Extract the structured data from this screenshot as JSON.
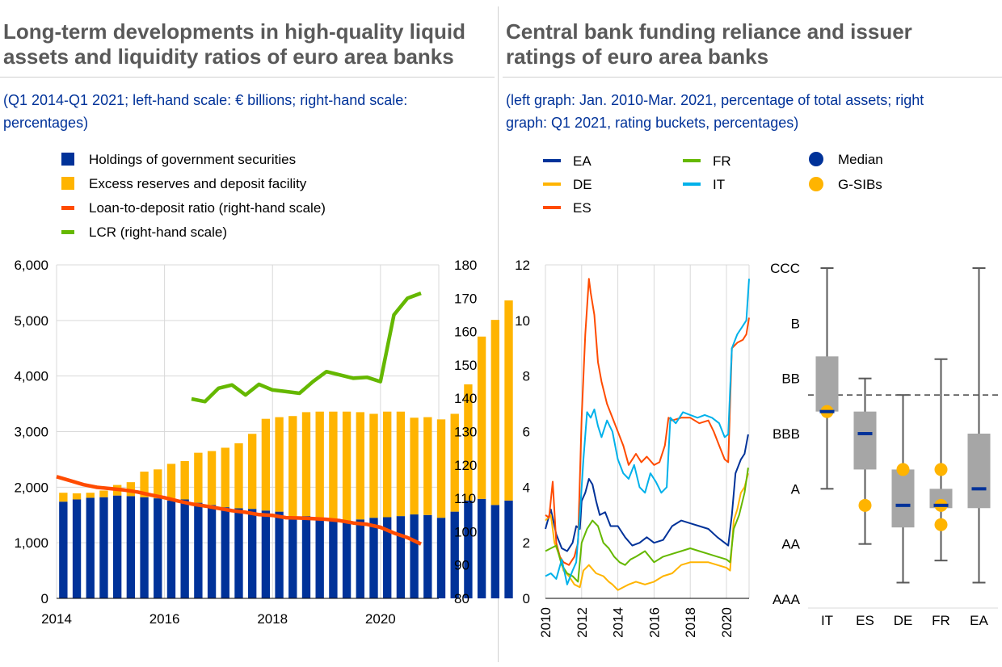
{
  "left_panel": {
    "title_line1": "Long-term developments in high-quality liquid",
    "title_line2": "assets and liquidity ratios of euro area banks",
    "subtitle_line1": "(Q1 2014-Q1 2021; left-hand scale: € billions; right-hand scale:",
    "subtitle_line2": "percentages)"
  },
  "right_panel": {
    "title_line1": "Central bank funding reliance and issuer",
    "title_line2": "ratings of euro area banks",
    "subtitle_line1": "(left graph: Jan. 2010-Mar. 2021, percentage of total assets; right",
    "subtitle_line2": "graph: Q1 2021, rating buckets, percentages)"
  },
  "colors": {
    "gov": "#003299",
    "excess": "#ffb400",
    "ltd": "#ff4b00",
    "lcr": "#65b800",
    "EA": "#003299",
    "DE": "#ffb400",
    "ES": "#ff4b00",
    "FR": "#65b800",
    "IT": "#00b1ea",
    "box": "#a6a6a6",
    "whisker": "#595959"
  },
  "chart_data": [
    {
      "type": "bar",
      "stacked": true,
      "legend": [
        {
          "label": "Holdings of government  securities",
          "kind": "square",
          "color_key": "gov"
        },
        {
          "label": "Excess reserves and deposit facility",
          "kind": "square",
          "color_key": "excess"
        },
        {
          "label": "Loan-to-deposit  ratio (right-hand scale)",
          "kind": "line",
          "color_key": "ltd"
        },
        {
          "label": "LCR (right-hand scale)",
          "kind": "line",
          "color_key": "lcr"
        }
      ],
      "x_start": 2014.0,
      "x_step": 0.25,
      "xlim": [
        2014,
        2021.08
      ],
      "x_ticks": [
        2014,
        2016,
        2018,
        2020
      ],
      "y_left_lim": [
        0,
        6000
      ],
      "y_left_ticks": [
        0,
        1000,
        2000,
        3000,
        4000,
        5000,
        6000
      ],
      "y_left_tick_labels": [
        "0",
        "1,000",
        "2,000",
        "3,000",
        "4,000",
        "5,000",
        "6,000"
      ],
      "y_right_lim": [
        80,
        180
      ],
      "y_right_ticks": [
        80,
        90,
        100,
        110,
        120,
        130,
        140,
        150,
        160,
        170,
        180
      ],
      "series": [
        {
          "name": "Holdings of government  securities",
          "values": [
            1740,
            1780,
            1810,
            1820,
            1850,
            1840,
            1820,
            1800,
            1760,
            1780,
            1720,
            1680,
            1640,
            1620,
            1610,
            1580,
            1560,
            1450,
            1480,
            1430,
            1420,
            1400,
            1420,
            1450,
            1460,
            1480,
            1510,
            1500,
            1450,
            1560,
            1760,
            1790,
            1680,
            1760
          ]
        },
        {
          "name": "Excess reserves and deposit facility",
          "values": [
            160,
            110,
            90,
            120,
            190,
            250,
            460,
            520,
            660,
            690,
            900,
            970,
            1070,
            1170,
            1350,
            1650,
            1700,
            1830,
            1870,
            1930,
            1940,
            1960,
            1930,
            1870,
            1900,
            1880,
            1740,
            1760,
            1770,
            1760,
            2090,
            2920,
            3330,
            3600
          ]
        },
        {
          "name": "Loan-to-deposit  ratio (right-hand scale)",
          "x": [
            2014,
            2014.25,
            2014.5,
            2014.75,
            2015,
            2015.25,
            2015.5,
            2015.75,
            2016,
            2016.25,
            2016.5,
            2016.75,
            2017,
            2017.25,
            2017.5,
            2017.75,
            2018,
            2018.25,
            2018.5,
            2018.75,
            2019,
            2019.25,
            2019.5,
            2019.75,
            2020,
            2020.25,
            2020.5,
            2020.75
          ],
          "values": [
            116.5,
            115.3,
            114.1,
            113.3,
            112.9,
            112.5,
            111.9,
            111.0,
            110.2,
            109.2,
            108.3,
            107.7,
            107.0,
            106.3,
            105.8,
            105.1,
            104.9,
            104.2,
            104.1,
            103.9,
            103.7,
            103.3,
            102.6,
            102.2,
            101.3,
            99.6,
            98.2,
            96.3
          ]
        },
        {
          "name": "LCR (right-hand scale)",
          "x": [
            2016.5,
            2016.75,
            2017,
            2017.25,
            2017.5,
            2017.75,
            2018,
            2018.25,
            2018.5,
            2018.75,
            2019,
            2019.25,
            2019.5,
            2019.75,
            2020,
            2020.25,
            2020.5,
            2020.75
          ],
          "values": [
            139.8,
            139.0,
            143.0,
            144.0,
            141.0,
            144.2,
            142.5,
            142.0,
            141.5,
            145.0,
            148.0,
            147.0,
            146.0,
            146.3,
            145.0,
            165.0,
            170.0,
            171.5
          ]
        }
      ]
    },
    {
      "type": "line",
      "legend": [
        {
          "label": "EA",
          "color_key": "EA"
        },
        {
          "label": "DE",
          "color_key": "DE"
        },
        {
          "label": "ES",
          "color_key": "ES"
        },
        {
          "label": "FR",
          "color_key": "FR"
        },
        {
          "label": "IT",
          "color_key": "IT"
        }
      ],
      "xlim": [
        2010,
        2021.25
      ],
      "x_ticks": [
        2010,
        2012,
        2014,
        2016,
        2018,
        2020
      ],
      "ylim": [
        0,
        12
      ],
      "y_ticks": [
        0,
        2,
        4,
        6,
        8,
        10,
        12
      ],
      "series": [
        {
          "name": "EA",
          "x": [
            2010,
            2010.3,
            2010.6,
            2010.9,
            2011.2,
            2011.5,
            2011.7,
            2011.9,
            2012.0,
            2012.2,
            2012.4,
            2012.6,
            2012.8,
            2013.0,
            2013.3,
            2013.6,
            2014.0,
            2014.4,
            2014.8,
            2015.2,
            2015.6,
            2016.0,
            2016.5,
            2017.0,
            2017.5,
            2018.0,
            2018.5,
            2019.0,
            2019.5,
            2019.9,
            2020.1,
            2020.3,
            2020.5,
            2020.8,
            2021.0,
            2021.2
          ],
          "values": [
            2.5,
            3.2,
            2.3,
            1.8,
            1.7,
            2.0,
            2.6,
            2.5,
            3.5,
            3.8,
            4.3,
            4.1,
            3.5,
            3.0,
            3.1,
            2.6,
            2.6,
            2.2,
            1.9,
            2.0,
            2.2,
            2.0,
            2.1,
            2.6,
            2.8,
            2.7,
            2.6,
            2.5,
            2.2,
            2.0,
            1.9,
            3.0,
            4.5,
            5.0,
            5.2,
            5.9
          ]
        },
        {
          "name": "DE",
          "x": [
            2010,
            2010.3,
            2010.5,
            2010.8,
            2011.0,
            2011.3,
            2011.6,
            2011.9,
            2012.1,
            2012.4,
            2012.8,
            2013.2,
            2013.5,
            2013.7,
            2014.0,
            2014.3,
            2014.6,
            2015.0,
            2015.5,
            2016.0,
            2016.5,
            2017.0,
            2017.5,
            2018.0,
            2018.5,
            2019.0,
            2019.5,
            2020.0,
            2020.2,
            2020.4,
            2020.6,
            2020.8,
            2021.0,
            2021.2
          ],
          "values": [
            2.8,
            3.0,
            2.0,
            1.5,
            1.0,
            0.8,
            0.5,
            0.4,
            1.0,
            1.2,
            0.9,
            0.8,
            0.6,
            0.5,
            0.3,
            0.4,
            0.5,
            0.6,
            0.5,
            0.6,
            0.8,
            0.9,
            1.2,
            1.3,
            1.3,
            1.3,
            1.2,
            1.1,
            1.0,
            2.8,
            3.2,
            3.8,
            4.0,
            4.5
          ]
        },
        {
          "name": "ES",
          "x": [
            2010,
            2010.2,
            2010.4,
            2010.6,
            2010.8,
            2011.0,
            2011.3,
            2011.6,
            2011.8,
            2012.0,
            2012.2,
            2012.4,
            2012.5,
            2012.7,
            2012.9,
            2013.1,
            2013.4,
            2013.7,
            2014.0,
            2014.3,
            2014.6,
            2014.8,
            2015.0,
            2015.3,
            2015.6,
            2016.0,
            2016.3,
            2016.6,
            2016.8,
            2017.0,
            2017.5,
            2018.0,
            2018.5,
            2019.0,
            2019.3,
            2019.6,
            2019.9,
            2020.1,
            2020.3,
            2020.6,
            2020.9,
            2021.1,
            2021.25
          ],
          "values": [
            3.0,
            2.9,
            4.2,
            2.0,
            1.5,
            1.3,
            1.2,
            1.5,
            2.0,
            6.5,
            9.5,
            11.5,
            11.0,
            10.2,
            8.5,
            7.8,
            7.0,
            6.5,
            6.0,
            5.5,
            4.8,
            5.0,
            5.2,
            4.9,
            5.1,
            4.8,
            4.9,
            5.5,
            6.5,
            6.4,
            6.5,
            6.5,
            6.3,
            6.4,
            6.0,
            5.5,
            5.0,
            4.9,
            9.0,
            9.2,
            9.3,
            9.5,
            10.1
          ]
        },
        {
          "name": "FR",
          "x": [
            2010,
            2010.3,
            2010.6,
            2010.9,
            2011.2,
            2011.5,
            2011.8,
            2012.0,
            2012.3,
            2012.6,
            2012.9,
            2013.2,
            2013.5,
            2013.8,
            2014.1,
            2014.4,
            2014.7,
            2015.0,
            2015.5,
            2016.0,
            2016.5,
            2017.0,
            2017.5,
            2018.0,
            2018.5,
            2019.0,
            2019.5,
            2020.0,
            2020.2,
            2020.4,
            2020.7,
            2021.0,
            2021.2
          ],
          "values": [
            1.7,
            1.8,
            1.9,
            1.2,
            0.9,
            0.8,
            0.6,
            2.0,
            2.5,
            2.8,
            2.6,
            2.0,
            1.8,
            1.5,
            1.3,
            1.2,
            1.4,
            1.5,
            1.7,
            1.3,
            1.5,
            1.6,
            1.7,
            1.8,
            1.7,
            1.6,
            1.5,
            1.4,
            1.3,
            2.5,
            3.0,
            3.8,
            4.7
          ]
        },
        {
          "name": "IT",
          "x": [
            2010,
            2010.3,
            2010.6,
            2010.9,
            2011.2,
            2011.5,
            2011.7,
            2011.9,
            2012.1,
            2012.3,
            2012.5,
            2012.7,
            2012.9,
            2013.1,
            2013.4,
            2013.7,
            2014.0,
            2014.3,
            2014.6,
            2014.9,
            2015.2,
            2015.5,
            2015.8,
            2016.1,
            2016.4,
            2016.7,
            2016.9,
            2017.2,
            2017.6,
            2018.0,
            2018.4,
            2018.8,
            2019.2,
            2019.6,
            2019.9,
            2020.1,
            2020.3,
            2020.6,
            2020.9,
            2021.1,
            2021.25
          ],
          "values": [
            0.8,
            0.9,
            0.7,
            1.4,
            0.5,
            1.0,
            1.3,
            3.0,
            5.0,
            6.7,
            6.5,
            6.8,
            6.2,
            5.8,
            6.4,
            6.0,
            5.0,
            4.5,
            4.3,
            4.8,
            4.0,
            3.8,
            4.5,
            4.2,
            3.8,
            4.0,
            6.5,
            6.3,
            6.7,
            6.6,
            6.5,
            6.6,
            6.5,
            6.3,
            5.8,
            5.9,
            9.0,
            9.5,
            9.8,
            10.0,
            11.5
          ]
        }
      ]
    },
    {
      "type": "box",
      "legend": [
        {
          "label": "Median",
          "color_key": "EA"
        },
        {
          "label": "G-SIBs",
          "color_key": "DE"
        }
      ],
      "categories": [
        "IT",
        "ES",
        "DE",
        "FR",
        "EA"
      ],
      "y_tick_labels": [
        "CCC",
        "B",
        "BB",
        "BBB",
        "A",
        "AA",
        "AAA"
      ],
      "y_ticks_values": [
        6,
        5,
        4,
        3,
        2,
        1,
        0
      ],
      "reference_line": 3.7,
      "boxes": [
        {
          "min": 2.0,
          "q1": 3.4,
          "median": 3.4,
          "q3": 4.4,
          "max": 6.0,
          "gsibs": [
            3.4
          ]
        },
        {
          "min": 1.0,
          "q1": 2.35,
          "median": 3.0,
          "q3": 3.4,
          "max": 4.0,
          "gsibs": [
            1.7
          ]
        },
        {
          "min": 0.3,
          "q1": 1.3,
          "median": 1.7,
          "q3": 2.35,
          "max": 3.7,
          "gsibs": [
            2.35
          ]
        },
        {
          "min": 0.7,
          "q1": 1.65,
          "median": 1.7,
          "q3": 2.0,
          "max": 4.35,
          "gsibs": [
            1.7,
            1.35,
            2.35
          ]
        },
        {
          "min": 0.3,
          "q1": 1.65,
          "median": 2.0,
          "q3": 3.0,
          "max": 6.0,
          "gsibs": []
        }
      ]
    }
  ]
}
